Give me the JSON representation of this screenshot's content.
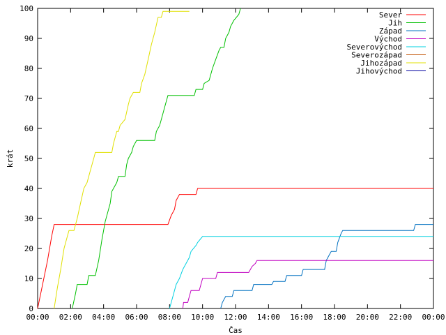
{
  "chart_data": {
    "type": "line",
    "xlabel": "Čas",
    "ylabel": "krát",
    "xlim": [
      0,
      24
    ],
    "ylim": [
      0,
      100
    ],
    "grid": false,
    "legend_position": "top-right",
    "x_ticks": [
      {
        "value": 0,
        "label": "00:00"
      },
      {
        "value": 2,
        "label": "02:00"
      },
      {
        "value": 4,
        "label": "04:00"
      },
      {
        "value": 6,
        "label": "06:00"
      },
      {
        "value": 8,
        "label": "08:00"
      },
      {
        "value": 10,
        "label": "10:00"
      },
      {
        "value": 12,
        "label": "12:00"
      },
      {
        "value": 14,
        "label": "14:00"
      },
      {
        "value": 16,
        "label": "16:00"
      },
      {
        "value": 18,
        "label": "18:00"
      },
      {
        "value": 20,
        "label": "20:00"
      },
      {
        "value": 22,
        "label": "22:00"
      },
      {
        "value": 24,
        "label": "00:00"
      }
    ],
    "y_ticks": [
      0,
      10,
      20,
      30,
      40,
      50,
      60,
      70,
      80,
      90,
      100
    ],
    "series": [
      {
        "name": "Sever",
        "color": "#ff0000",
        "points": [
          [
            0,
            0
          ],
          [
            0.3,
            8
          ],
          [
            0.6,
            16
          ],
          [
            0.85,
            24
          ],
          [
            1.0,
            28
          ],
          [
            7.9,
            28
          ],
          [
            8.1,
            31
          ],
          [
            8.3,
            33
          ],
          [
            8.4,
            36
          ],
          [
            8.6,
            38
          ],
          [
            9.6,
            38
          ],
          [
            9.7,
            40
          ],
          [
            24,
            40
          ]
        ]
      },
      {
        "name": "Jih",
        "color": "#00c000",
        "points": [
          [
            2.1,
            0
          ],
          [
            2.3,
            5
          ],
          [
            2.4,
            8
          ],
          [
            3.0,
            8
          ],
          [
            3.1,
            11
          ],
          [
            3.5,
            11
          ],
          [
            3.7,
            16
          ],
          [
            3.9,
            23
          ],
          [
            4.1,
            29
          ],
          [
            4.4,
            35
          ],
          [
            4.5,
            39
          ],
          [
            4.8,
            42
          ],
          [
            4.9,
            44
          ],
          [
            5.3,
            44
          ],
          [
            5.4,
            48
          ],
          [
            5.5,
            50
          ],
          [
            5.7,
            52
          ],
          [
            5.8,
            54
          ],
          [
            6.0,
            56
          ],
          [
            7.1,
            56
          ],
          [
            7.2,
            59
          ],
          [
            7.4,
            61
          ],
          [
            7.5,
            63
          ],
          [
            7.7,
            67
          ],
          [
            7.8,
            69
          ],
          [
            7.9,
            71
          ],
          [
            9.5,
            71
          ],
          [
            9.6,
            73
          ],
          [
            10.0,
            73
          ],
          [
            10.1,
            75
          ],
          [
            10.4,
            76
          ],
          [
            10.6,
            80
          ],
          [
            10.8,
            83
          ],
          [
            11.0,
            86
          ],
          [
            11.1,
            87
          ],
          [
            11.3,
            87
          ],
          [
            11.4,
            90
          ],
          [
            11.6,
            92
          ],
          [
            11.7,
            94
          ],
          [
            11.9,
            96
          ],
          [
            12.2,
            98
          ],
          [
            12.3,
            100
          ]
        ]
      },
      {
        "name": "Západ",
        "color": "#0070c0",
        "points": [
          [
            11.1,
            0
          ],
          [
            11.2,
            2
          ],
          [
            11.4,
            4
          ],
          [
            11.8,
            4
          ],
          [
            11.9,
            6
          ],
          [
            13.0,
            6
          ],
          [
            13.1,
            8
          ],
          [
            14.2,
            8
          ],
          [
            14.3,
            9
          ],
          [
            15.0,
            9
          ],
          [
            15.1,
            11
          ],
          [
            16.0,
            11
          ],
          [
            16.1,
            13
          ],
          [
            17.4,
            13
          ],
          [
            17.5,
            16
          ],
          [
            17.6,
            17
          ],
          [
            17.8,
            19
          ],
          [
            18.1,
            19
          ],
          [
            18.2,
            22
          ],
          [
            18.4,
            25
          ],
          [
            18.5,
            26
          ],
          [
            22.8,
            26
          ],
          [
            22.9,
            28
          ],
          [
            24,
            28
          ]
        ]
      },
      {
        "name": "Východ",
        "color": "#c000c0",
        "points": [
          [
            8.8,
            0
          ],
          [
            8.85,
            2
          ],
          [
            9.1,
            2
          ],
          [
            9.2,
            4
          ],
          [
            9.3,
            6
          ],
          [
            9.8,
            6
          ],
          [
            9.9,
            8
          ],
          [
            10.0,
            10
          ],
          [
            10.8,
            10
          ],
          [
            10.9,
            12
          ],
          [
            12.8,
            12
          ],
          [
            12.9,
            13
          ],
          [
            13.0,
            14
          ],
          [
            13.2,
            15
          ],
          [
            13.3,
            16
          ],
          [
            24,
            16
          ]
        ]
      },
      {
        "name": "Severovýchod",
        "color": "#00d0e0",
        "points": [
          [
            8.0,
            0
          ],
          [
            8.2,
            4
          ],
          [
            8.4,
            8
          ],
          [
            8.6,
            10
          ],
          [
            8.8,
            13
          ],
          [
            9.0,
            15
          ],
          [
            9.2,
            17
          ],
          [
            9.3,
            19
          ],
          [
            9.6,
            21
          ],
          [
            9.7,
            22
          ],
          [
            10.0,
            24
          ],
          [
            24,
            24
          ]
        ]
      },
      {
        "name": "Severozápad",
        "color": "#c05000",
        "points": []
      },
      {
        "name": "Jihozápad",
        "color": "#e0e000",
        "points": [
          [
            1.0,
            0
          ],
          [
            1.2,
            7
          ],
          [
            1.4,
            13
          ],
          [
            1.6,
            20
          ],
          [
            1.8,
            24
          ],
          [
            1.9,
            26
          ],
          [
            2.2,
            26
          ],
          [
            2.4,
            30
          ],
          [
            2.6,
            35
          ],
          [
            2.8,
            40
          ],
          [
            3.0,
            42
          ],
          [
            3.2,
            46
          ],
          [
            3.4,
            50
          ],
          [
            3.5,
            52
          ],
          [
            4.5,
            52
          ],
          [
            4.6,
            55
          ],
          [
            4.8,
            59
          ],
          [
            4.9,
            59
          ],
          [
            5.0,
            61
          ],
          [
            5.3,
            63
          ],
          [
            5.5,
            68
          ],
          [
            5.6,
            70
          ],
          [
            5.8,
            72
          ],
          [
            6.2,
            72
          ],
          [
            6.3,
            75
          ],
          [
            6.5,
            78
          ],
          [
            6.7,
            83
          ],
          [
            6.9,
            88
          ],
          [
            7.1,
            92
          ],
          [
            7.3,
            97
          ],
          [
            7.5,
            97
          ],
          [
            7.6,
            99
          ],
          [
            9.2,
            99
          ]
        ]
      },
      {
        "name": "Jihovýchod",
        "color": "#0000a0",
        "points": []
      }
    ]
  }
}
